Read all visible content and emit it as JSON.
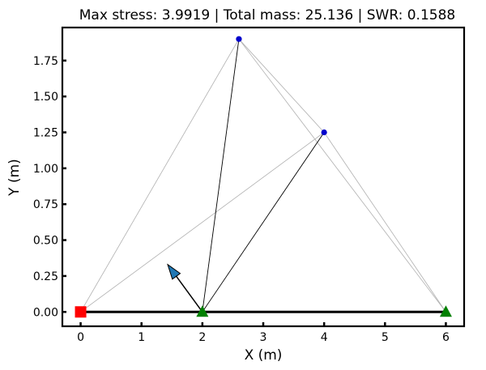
{
  "chart_data": {
    "type": "truss",
    "title": "Max stress: 3.9919 | Total mass: 25.136 | SWR: 0.1588",
    "xlabel": "X (m)",
    "ylabel": "Y (m)",
    "xlim": [
      -0.3,
      6.3
    ],
    "ylim": [
      -0.1,
      1.98
    ],
    "x_ticks": [
      0,
      1,
      2,
      3,
      4,
      5,
      6
    ],
    "x_tick_labels": [
      "0",
      "1",
      "2",
      "3",
      "4",
      "5",
      "6"
    ],
    "y_ticks": [
      0.0,
      0.25,
      0.5,
      0.75,
      1.0,
      1.25,
      1.5,
      1.75
    ],
    "y_tick_labels": [
      "0.00",
      "0.25",
      "0.50",
      "0.75",
      "1.00",
      "1.25",
      "1.50",
      "1.75"
    ],
    "grid": false,
    "nodes": [
      {
        "id": "n1",
        "x": 0.0,
        "y": 0.0,
        "marker": "square",
        "color": "#ff0000"
      },
      {
        "id": "n2",
        "x": 2.0,
        "y": 0.0,
        "marker": "triangle",
        "color": "#008000"
      },
      {
        "id": "n3",
        "x": 6.0,
        "y": 0.0,
        "marker": "triangle",
        "color": "#008000"
      },
      {
        "id": "n4",
        "x": 2.6,
        "y": 1.9,
        "marker": "dot",
        "color": "#0000cc"
      },
      {
        "id": "n5",
        "x": 4.0,
        "y": 1.25,
        "marker": "dot",
        "color": "#0000cc"
      }
    ],
    "members": [
      {
        "from": "n1",
        "to": "n2",
        "weight": "heavy"
      },
      {
        "from": "n2",
        "to": "n3",
        "weight": "heavy"
      },
      {
        "from": "n1",
        "to": "n4",
        "weight": "light"
      },
      {
        "from": "n1",
        "to": "n5",
        "weight": "light"
      },
      {
        "from": "n4",
        "to": "n5",
        "weight": "light"
      },
      {
        "from": "n4",
        "to": "n3",
        "weight": "light"
      },
      {
        "from": "n5",
        "to": "n3",
        "weight": "light"
      },
      {
        "from": "n2",
        "to": "n4",
        "weight": "medium"
      },
      {
        "from": "n2",
        "to": "n5",
        "weight": "medium"
      }
    ],
    "load": {
      "node": "n2",
      "dx": -0.57,
      "dy": 0.33,
      "color": "#1f77b4"
    }
  }
}
